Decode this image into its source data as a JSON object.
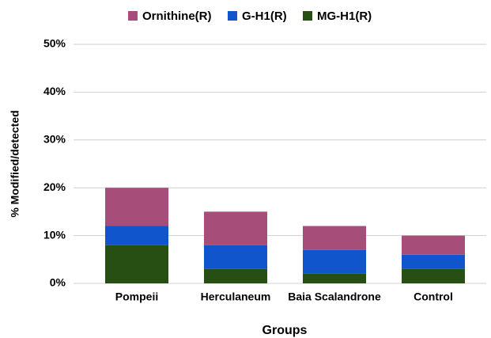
{
  "chart_data": {
    "type": "stacked_bar",
    "y_label": "% Modified/detected",
    "x_label": "Groups",
    "categories": [
      "Pompeii",
      "Herculaneum",
      "Baia Scalandrone",
      "Control"
    ],
    "series": [
      {
        "name": "Ornithine(R)",
        "color": "#a64d79",
        "values": [
          8,
          7,
          5,
          4
        ]
      },
      {
        "name": "G-H1(R)",
        "color": "#1155cc",
        "values": [
          4,
          5,
          5,
          3
        ]
      },
      {
        "name": "MG-H1(R)",
        "color": "#274e13",
        "values": [
          8,
          3,
          2,
          3
        ]
      }
    ],
    "ylim": [
      0,
      50
    ],
    "yticks": [
      {
        "value": 0,
        "label": "0%"
      },
      {
        "value": 10,
        "label": "10%"
      },
      {
        "value": 20,
        "label": "20%"
      },
      {
        "value": 30,
        "label": "30%"
      },
      {
        "value": 40,
        "label": "40%"
      },
      {
        "value": 50,
        "label": "50%"
      }
    ],
    "grid": true,
    "legend": "top"
  }
}
